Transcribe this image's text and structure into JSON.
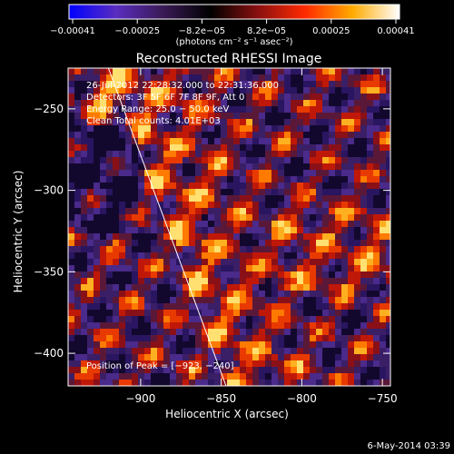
{
  "colorbar": {
    "ticks": [
      "−0.00041",
      "−0.00025",
      "−8.2e−05",
      "8.2e−05",
      "0.00025",
      "0.00041"
    ],
    "range": [
      -0.00041,
      0.00041
    ],
    "unit_label": "(photons cm⁻² s⁻¹ asec⁻²)",
    "colors": [
      "#0000ff",
      "#5a2dbf",
      "#3a1a55",
      "#000000",
      "#8a1010",
      "#ff2a00",
      "#ffaa00",
      "#ffffff"
    ]
  },
  "chart_data": {
    "type": "heatmap",
    "title": "Reconstructed RHESSI Image",
    "xlabel": "Heliocentric X (arcsec)",
    "ylabel": "Heliocentric Y (arcsec)",
    "xlim": [
      -945,
      -745
    ],
    "ylim": [
      -420,
      -225
    ],
    "xticks": [
      -900,
      -850,
      -800,
      -750
    ],
    "yticks": [
      -250,
      -300,
      -350,
      -400
    ],
    "xtick_labels": [
      "−900",
      "−850",
      "−800",
      "−750"
    ],
    "ytick_labels": [
      "−250",
      "−300",
      "−350",
      "−400"
    ],
    "limb_line": {
      "x": [
        -920,
        -847
      ],
      "y": [
        -225,
        -420
      ]
    },
    "annotations": [
      "26-Jul-2012 22:28:32.000 to 22:31:36.000",
      "Detectors: 3F 5F 6F 7F 8F 9F, Att 0",
      "Energy Range: 25.0 − 50.0 keV",
      "Clean    Total counts: 4.01E+03",
      "Position of Peak = [−923, −240]"
    ],
    "peak": {
      "x": -923,
      "y": -240
    }
  },
  "footer": {
    "date": "6-May-2014 03:39"
  }
}
